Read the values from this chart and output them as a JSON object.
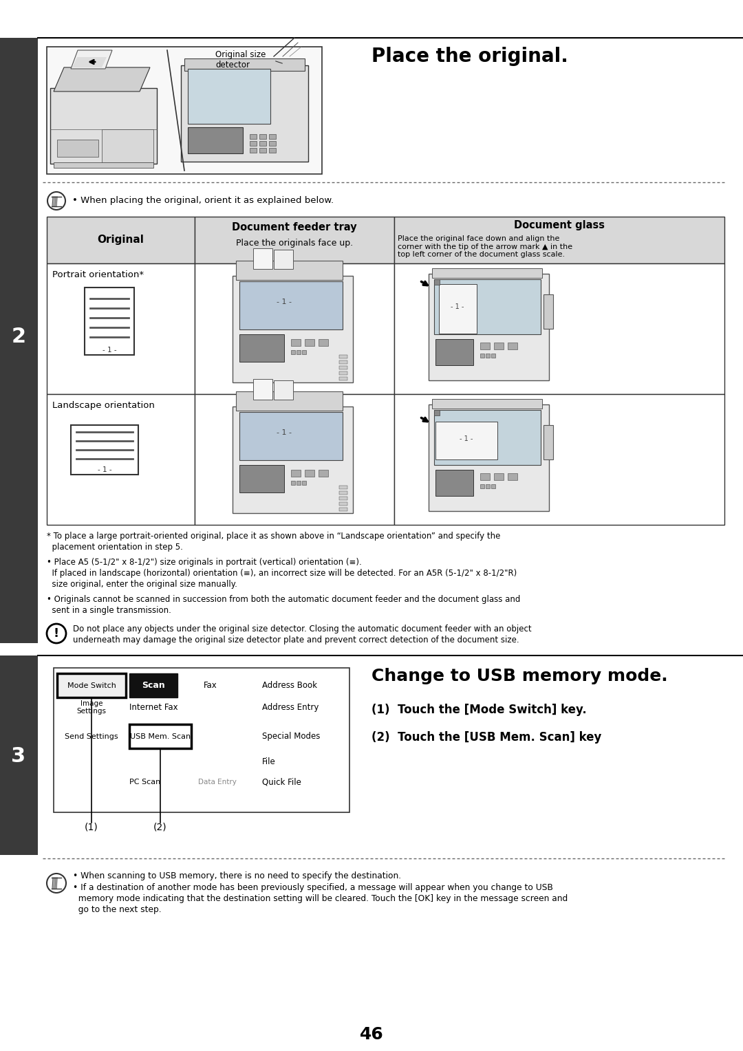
{
  "page_number": "46",
  "bg_color": "#ffffff",
  "sidebar_color": "#3a3a3a",
  "section2_label": "2",
  "section3_label": "3",
  "step1_title": "Place the original.",
  "step3_title": "Change to USB memory mode.",
  "step3_sub1": "(1)  Touch the [Mode Switch] key.",
  "step3_sub2": "(2)  Touch the [USB Mem. Scan] key",
  "note_pencil_1": "• When placing the original, orient it as explained below.",
  "table_header_col1": "Original",
  "table_header_col2_line1": "Document feeder tray",
  "table_header_col2_line2": "Place the originals face up.",
  "table_header_col3_top": "Document glass",
  "table_header_col3_bot": "Place the original face down and align the\ncorner with the tip of the arrow mark ▲ in the\ntop left corner of the document glass scale.",
  "table_row1_col1": "Portrait orientation*",
  "table_row2_col1": "Landscape orientation",
  "footnote1_line1": "* To place a large portrait-oriented original, place it as shown above in “Landscape orientation” and specify the",
  "footnote1_line2": "  placement orientation in step 5.",
  "footnote2_line1": "• Place A5 (5-1/2\" x 8-1/2\") size originals in portrait (vertical) orientation (≡).",
  "footnote2_line2": "  If placed in landscape (horizontal) orientation (≡), an incorrect size will be detected. For an A5R (5-1/2\" x 8-1/2\"R)",
  "footnote2_line3": "  size original, enter the original size manually.",
  "footnote3_line1": "• Originals cannot be scanned in succession from both the automatic document feeder and the document glass and",
  "footnote3_line2": "  sent in a single transmission.",
  "warning_text_line1": "Do not place any objects under the original size detector. Closing the automatic document feeder with an object",
  "warning_text_line2": "underneath may damage the original size detector plate and prevent correct detection of the document size.",
  "note2_line1": "• When scanning to USB memory, there is no need to specify the destination.",
  "note2_line2": "• If a destination of another mode has been previously specified, a message will appear when you change to USB",
  "note2_line3": "  memory mode indicating that the destination setting will be cleared. Touch the [OK] key in the message screen and",
  "note2_line4": "  go to the next step.",
  "ui_mode_switch": "Mode Switch",
  "ui_scan": "Scan",
  "ui_fax": "Fax",
  "ui_address_book": "Address Book",
  "ui_image_settings": "Image\nSettings",
  "ui_internet_fax": "Internet Fax",
  "ui_address_entry": "Address Entry",
  "ui_send_settings": "Send Settings",
  "ui_usb_mem_scan": "USB Mem. Scan",
  "ui_special_modes": "Special Modes",
  "ui_pc_scan": "PC Scan",
  "ui_data_entry": "Data Entry",
  "ui_file": "File",
  "ui_quick_file": "Quick File",
  "label_1": "(1)",
  "label_2": "(2)",
  "img_label": "Original size\ndetector"
}
